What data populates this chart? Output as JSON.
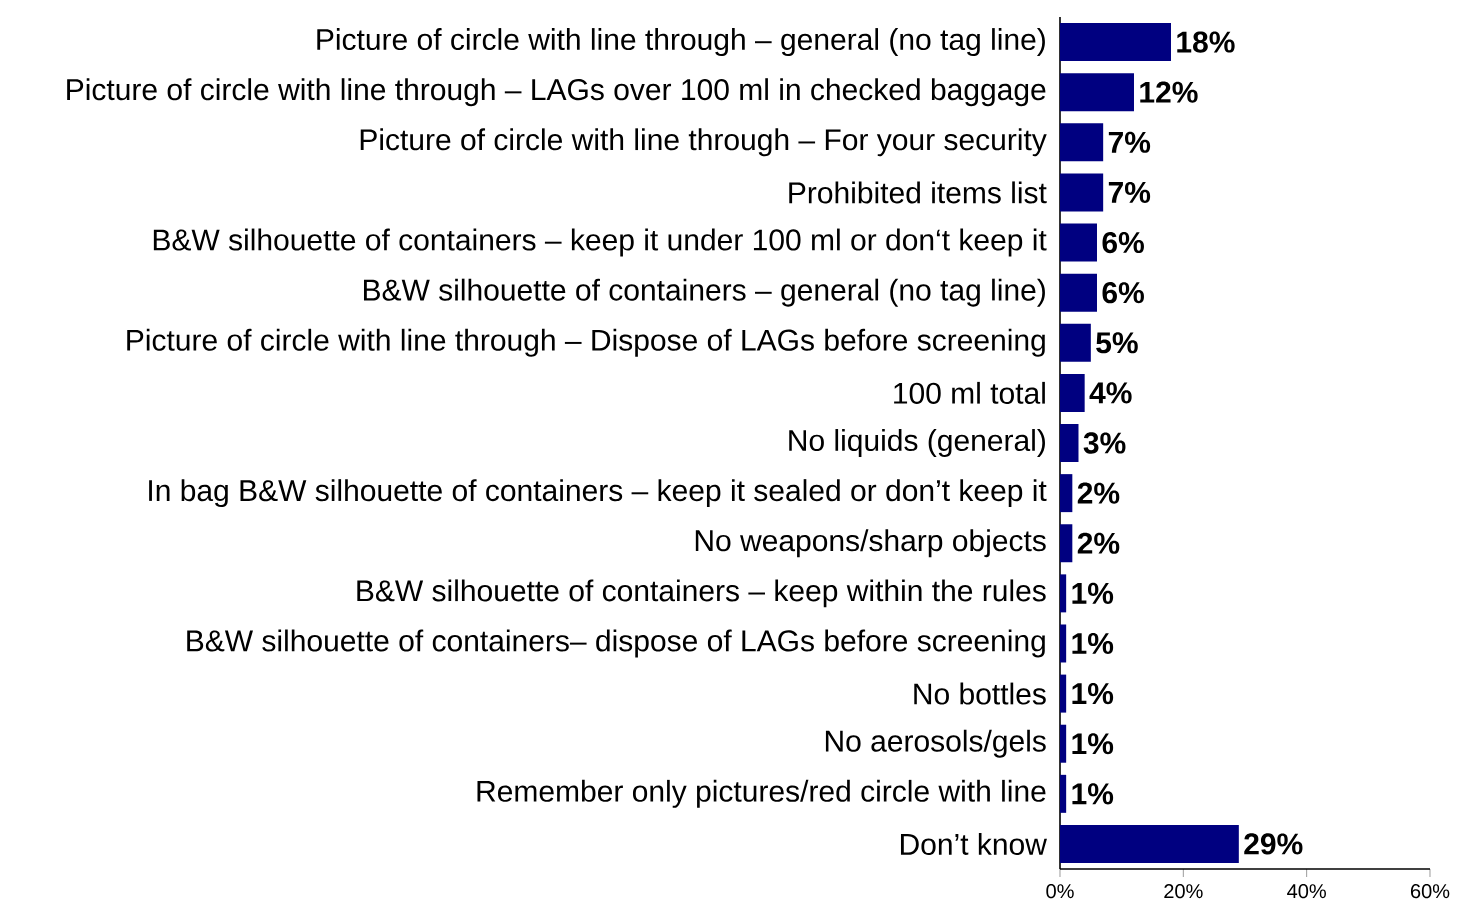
{
  "chart_data": {
    "type": "bar",
    "orientation": "horizontal",
    "color": "#000080",
    "categories": [
      "Picture of circle with line through – general (no tag line)",
      "Picture of circle with line through – LAGs over 100 ml in checked baggage",
      "Picture of circle with line through – For your security",
      "Prohibited items list",
      "B&W silhouette of containers – keep it under 100 ml or don‘t keep it",
      "B&W silhouette of containers – general (no tag line)",
      "Picture of circle with line through – Dispose of LAGs before screening",
      "100 ml total",
      "No liquids (general)",
      "In bag B&W silhouette of containers – keep it sealed or don’t keep it",
      "No weapons/sharp objects",
      "B&W silhouette of containers – keep within the rules",
      "B&W silhouette of containers– dispose of LAGs before screening",
      "No bottles",
      "No aerosols/gels",
      "Remember only pictures/red circle with line",
      "Don’t know"
    ],
    "values": [
      18,
      12,
      7,
      7,
      6,
      6,
      5,
      4,
      3,
      2,
      2,
      1,
      1,
      1,
      1,
      1,
      29
    ],
    "value_labels": [
      "18%",
      "12%",
      "7%",
      "7%",
      "6%",
      "6%",
      "5%",
      "4%",
      "3%",
      "2%",
      "2%",
      "1%",
      "1%",
      "1%",
      "1%",
      "1%",
      "29%"
    ],
    "xlim": [
      0,
      60
    ],
    "xticks": [
      {
        "value": 0,
        "label": "0%"
      },
      {
        "value": 20,
        "label": "20%"
      },
      {
        "value": 40,
        "label": "40%"
      },
      {
        "value": 60,
        "label": "60%"
      }
    ],
    "grid": false
  }
}
